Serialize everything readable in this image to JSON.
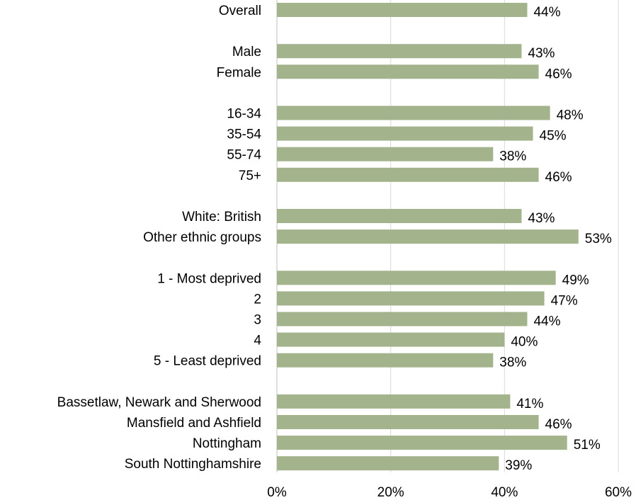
{
  "chart_data": {
    "type": "bar",
    "orientation": "horizontal",
    "title": "",
    "xlabel": "",
    "ylabel": "",
    "xlim": [
      0,
      60
    ],
    "x_ticks": [
      "0%",
      "20%",
      "40%",
      "60%"
    ],
    "grid": true,
    "bar_color": "#a3b38c",
    "grid_color": "#d9d9d9",
    "categories": [
      "Overall",
      "Male",
      "Female",
      "16-34",
      "35-54",
      "55-74",
      "75+",
      "White: British",
      "Other ethnic groups",
      "1 - Most deprived",
      "2",
      "3",
      "4",
      "5 - Least deprived",
      "Bassetlaw, Newark and Sherwood",
      "Mansfield and Ashfield",
      "Nottingham",
      "South Nottinghamshire"
    ],
    "groups": [
      [
        "Overall"
      ],
      [
        "Male",
        "Female"
      ],
      [
        "16-34",
        "35-54",
        "55-74",
        "75+"
      ],
      [
        "White: British",
        "Other ethnic groups"
      ],
      [
        "1 - Most deprived",
        "2",
        "3",
        "4",
        "5 - Least deprived"
      ],
      [
        "Bassetlaw, Newark and Sherwood",
        "Mansfield and Ashfield",
        "Nottingham",
        "South Nottinghamshire"
      ]
    ],
    "values": [
      44,
      43,
      46,
      48,
      45,
      38,
      46,
      43,
      53,
      49,
      47,
      44,
      40,
      38,
      41,
      46,
      51,
      39
    ],
    "value_labels": [
      "44%",
      "43%",
      "46%",
      "48%",
      "45%",
      "38%",
      "46%",
      "43%",
      "53%",
      "49%",
      "47%",
      "44%",
      "40%",
      "38%",
      "41%",
      "46%",
      "51%",
      "39%"
    ]
  }
}
